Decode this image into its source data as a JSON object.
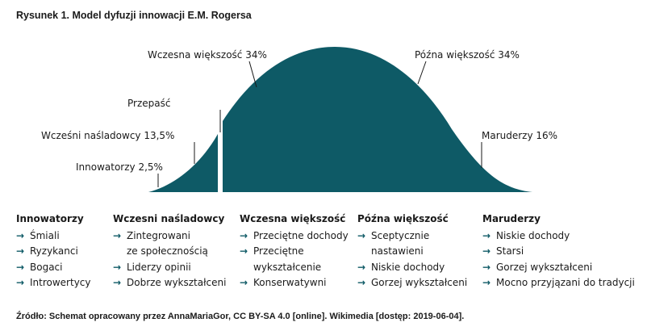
{
  "title": "Rysunek 1. Model dyfuzji innowacji E.M. Rogersa",
  "colors": {
    "curve_fill": "#0e5a66",
    "arrow": "#0e5a66",
    "text": "#1a1a1a"
  },
  "curve_labels": {
    "innovators": "Innowatorzy 2,5%",
    "early_adopters": "Wcześni naśladowcy 13,5%",
    "chasm": "Przepaść",
    "early_majority": "Wczesna większość 34%",
    "late_majority": "Późna większość 34%",
    "laggards": "Maruderzy 16%"
  },
  "columns": [
    {
      "heading": "Innowatorzy",
      "items": [
        "Śmiali",
        "Ryzykanci",
        "Bogaci",
        "Introwertycy"
      ]
    },
    {
      "heading": "Wczesni naśladowcy",
      "items": [
        [
          "Zintegrowani",
          "ze społecznością"
        ],
        "Liderzy opinii",
        "Dobrze wykształceni"
      ]
    },
    {
      "heading": "Wczesna większość",
      "items": [
        "Przeciętne dochody",
        [
          "Przeciętne",
          "wykształcenie"
        ],
        "Konserwatywni"
      ]
    },
    {
      "heading": "Późna większość",
      "items": [
        [
          "Sceptycznie",
          "nastawieni"
        ],
        "Niskie dochody",
        "Gorzej wykształceni"
      ]
    },
    {
      "heading": "Maruderzy",
      "items": [
        "Niskie dochody",
        "Starsi",
        "Gorzej wykształceni",
        "Mocno przyjązani do tradycji"
      ]
    }
  ],
  "arrow_glyph": "→",
  "source": "Źródło: Schemat opracowany przez AnnaMariaGor, CC BY-SA 4.0 [online]. Wikimedia [dostęp: 2019-06-04]."
}
